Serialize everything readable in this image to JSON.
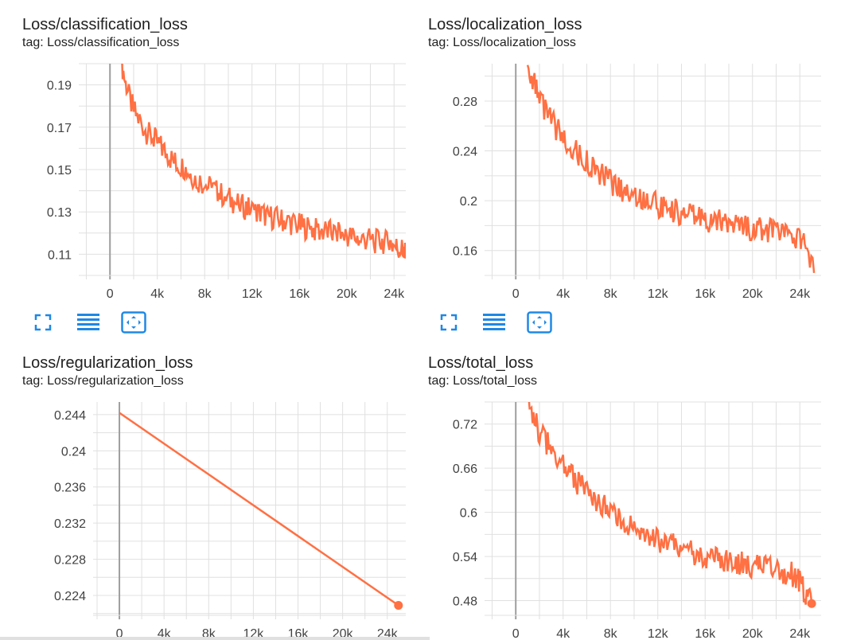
{
  "charts": [
    {
      "title": "Loss/classification_loss",
      "tag": "tag: Loss/classification_loss"
    },
    {
      "title": "Loss/localization_loss",
      "tag": "tag: Loss/localization_loss"
    },
    {
      "title": "Loss/regularization_loss",
      "tag": "tag: Loss/regularization_loss"
    },
    {
      "title": "Loss/total_loss",
      "tag": "tag: Loss/total_loss"
    }
  ],
  "toolbar": {
    "icons": [
      "fullscreen-icon",
      "toggle-log-scale-icon",
      "fit-domain-icon"
    ]
  },
  "colors": {
    "series": "#ff7043",
    "zero_axis": "#9e9e9e",
    "grid": "#e0e0e0"
  },
  "chart_data": [
    {
      "type": "line",
      "title": "Loss/classification_loss",
      "xlim": [
        -2300,
        25800
      ],
      "ylim": [
        0.1,
        0.2
      ],
      "xticks": [
        0,
        4000,
        8000,
        12000,
        16000,
        20000,
        24000
      ],
      "xtick_labels": [
        "0",
        "4k",
        "8k",
        "12k",
        "16k",
        "20k",
        "24k"
      ],
      "yticks": [
        0.11,
        0.13,
        0.15,
        0.17,
        0.19
      ],
      "ytick_labels": [
        "0.11",
        "0.13",
        "0.15",
        "0.17",
        "0.19"
      ],
      "grid": true,
      "series": [
        {
          "x": [
            1000,
            1400,
            2000,
            2600,
            3200,
            3800,
            4400,
            5000,
            5600,
            6200,
            6800,
            7400,
            8000,
            8600,
            9200,
            9800,
            10400,
            11000,
            11600,
            12200,
            12800,
            13400,
            14000,
            14600,
            15200,
            15800,
            16400,
            17000,
            17600,
            18200,
            18800,
            19400,
            20000,
            20600,
            21200,
            21800,
            22400,
            23000,
            23600,
            24000,
            24400,
            24800,
            25000
          ],
          "y": [
            0.2,
            0.188,
            0.178,
            0.172,
            0.167,
            0.164,
            0.16,
            0.156,
            0.153,
            0.151,
            0.148,
            0.145,
            0.143,
            0.141,
            0.139,
            0.137,
            0.135,
            0.133,
            0.132,
            0.13,
            0.129,
            0.128,
            0.127,
            0.126,
            0.125,
            0.124,
            0.123,
            0.122,
            0.121,
            0.121,
            0.12,
            0.119,
            0.119,
            0.118,
            0.117,
            0.117,
            0.116,
            0.116,
            0.115,
            0.114,
            0.113,
            0.112,
            0.11
          ],
          "last": [
            25000,
            0.11
          ]
        }
      ]
    },
    {
      "type": "line",
      "title": "Loss/localization_loss",
      "xlim": [
        -2300,
        25800
      ],
      "ylim": [
        0.14,
        0.31
      ],
      "xticks": [
        0,
        4000,
        8000,
        12000,
        16000,
        20000,
        24000
      ],
      "xtick_labels": [
        "0",
        "4k",
        "8k",
        "12k",
        "16k",
        "20k",
        "24k"
      ],
      "yticks": [
        0.16,
        0.2,
        0.24,
        0.28
      ],
      "ytick_labels": [
        "0.16",
        "0.2",
        "0.24",
        "0.28"
      ],
      "grid": true,
      "series": [
        {
          "x": [
            1000,
            1500,
            2000,
            2600,
            3200,
            3800,
            4400,
            5000,
            5600,
            6200,
            6800,
            7400,
            8000,
            8600,
            9200,
            9800,
            10400,
            11000,
            11600,
            12200,
            12800,
            13400,
            14000,
            14600,
            15200,
            15800,
            16400,
            17000,
            17600,
            18200,
            18800,
            19400,
            20000,
            20600,
            21200,
            21800,
            22400,
            23000,
            23600,
            24000,
            24500,
            25200
          ],
          "y": [
            0.31,
            0.295,
            0.28,
            0.27,
            0.261,
            0.253,
            0.246,
            0.24,
            0.234,
            0.229,
            0.224,
            0.219,
            0.215,
            0.211,
            0.208,
            0.205,
            0.202,
            0.2,
            0.198,
            0.196,
            0.194,
            0.192,
            0.19,
            0.188,
            0.187,
            0.185,
            0.184,
            0.183,
            0.182,
            0.181,
            0.18,
            0.179,
            0.178,
            0.177,
            0.176,
            0.175,
            0.174,
            0.173,
            0.172,
            0.17,
            0.165,
            0.142
          ]
        }
      ]
    },
    {
      "type": "line",
      "title": "Loss/regularization_loss",
      "xlim": [
        -2000,
        25800
      ],
      "ylim": [
        0.2218,
        0.2454
      ],
      "xticks": [
        0,
        4000,
        8000,
        12000,
        16000,
        20000,
        24000
      ],
      "xtick_labels": [
        "0",
        "4k",
        "8k",
        "12k",
        "16k",
        "20k",
        "24k"
      ],
      "yticks": [
        0.224,
        0.228,
        0.232,
        0.236,
        0.24,
        0.244
      ],
      "ytick_labels": [
        "0.224",
        "0.228",
        "0.232",
        "0.236",
        "0.24",
        "0.244"
      ],
      "grid": true,
      "series": [
        {
          "x": [
            0,
            25000
          ],
          "y": [
            0.2442,
            0.2229
          ],
          "last": [
            25000,
            0.2229
          ]
        }
      ]
    },
    {
      "type": "line",
      "title": "Loss/total_loss",
      "xlim": [
        -2300,
        25800
      ],
      "ylim": [
        0.46,
        0.75
      ],
      "xticks": [
        0,
        4000,
        8000,
        12000,
        16000,
        20000,
        24000
      ],
      "xtick_labels": [
        "0",
        "4k",
        "8k",
        "12k",
        "16k",
        "20k",
        "24k"
      ],
      "yticks": [
        0.48,
        0.54,
        0.6,
        0.66,
        0.72
      ],
      "ytick_labels": [
        "0.48",
        "0.54",
        "0.6",
        "0.66",
        "0.72"
      ],
      "grid": true,
      "series": [
        {
          "x": [
            1000,
            1500,
            2000,
            2600,
            3200,
            3800,
            4400,
            5000,
            5600,
            6200,
            6800,
            7400,
            8000,
            8600,
            9200,
            9800,
            10400,
            11000,
            11600,
            12200,
            12800,
            13400,
            14000,
            14600,
            15200,
            15800,
            16400,
            17000,
            17600,
            18200,
            18800,
            19400,
            20000,
            20600,
            21200,
            21800,
            22400,
            23000,
            23600,
            24000,
            24500,
            25000
          ],
          "y": [
            0.75,
            0.73,
            0.71,
            0.695,
            0.68,
            0.668,
            0.656,
            0.645,
            0.634,
            0.625,
            0.616,
            0.608,
            0.6,
            0.593,
            0.587,
            0.581,
            0.575,
            0.57,
            0.566,
            0.562,
            0.558,
            0.554,
            0.551,
            0.548,
            0.545,
            0.542,
            0.539,
            0.537,
            0.535,
            0.533,
            0.531,
            0.529,
            0.527,
            0.525,
            0.523,
            0.521,
            0.519,
            0.517,
            0.514,
            0.505,
            0.49,
            0.476
          ],
          "last": [
            25000,
            0.476
          ]
        }
      ]
    }
  ]
}
